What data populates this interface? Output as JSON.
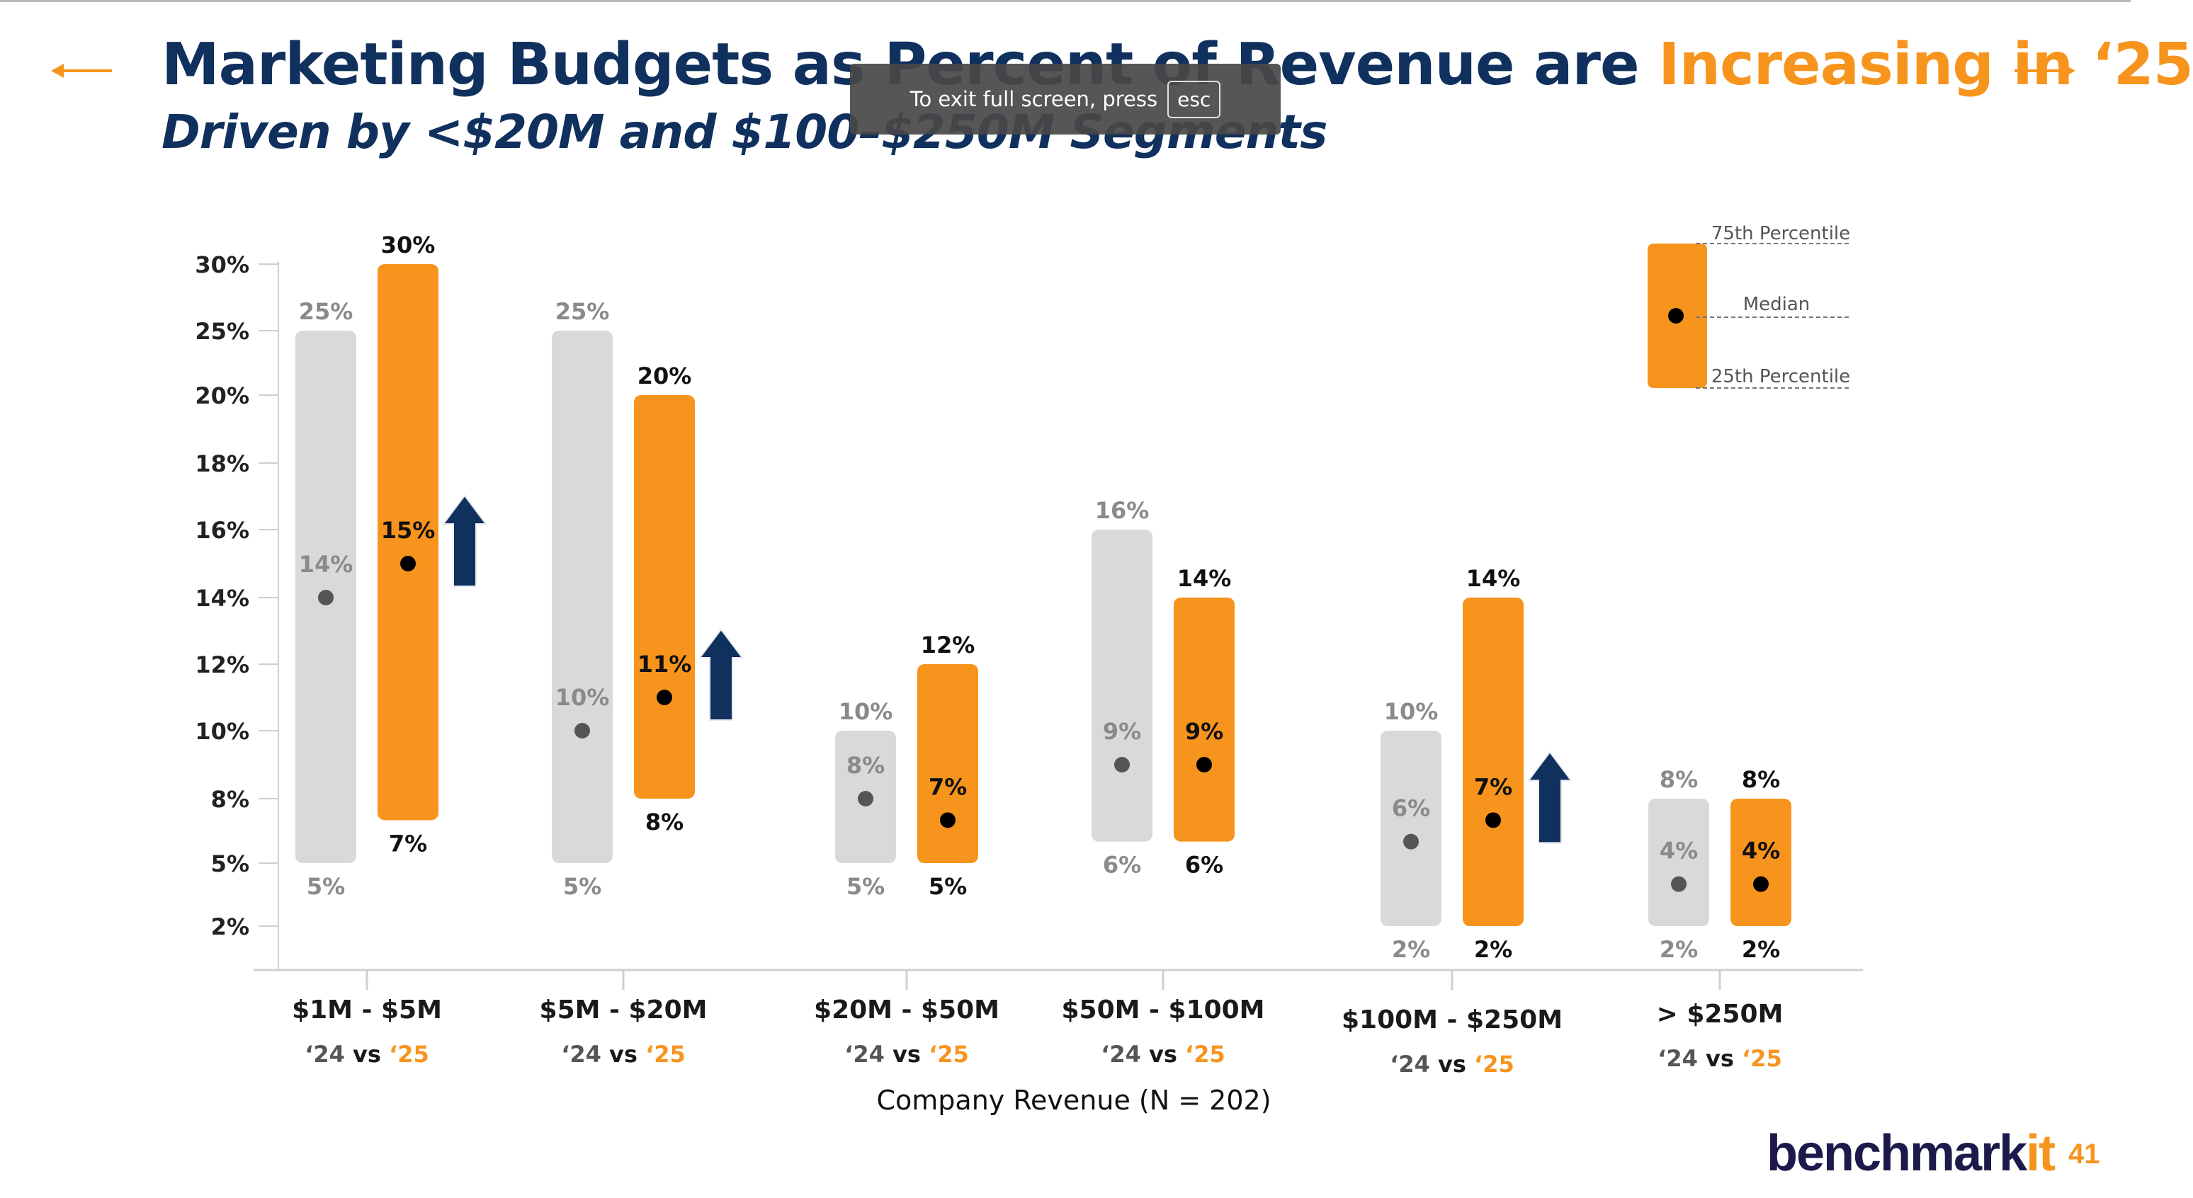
{
  "slide": {
    "title_main": "Marketing Budgets as Percent of Revenue are ",
    "title_highlight": "Increasing in ‘25",
    "subtitle": "Driven by <$20M and $100–$250M Segments",
    "page_number": "41",
    "brand_main": "benchmark",
    "brand_accent": "it",
    "nav_prev_icon": "arrow-left-icon",
    "nav_next_icon": "arrow-right-icon",
    "accent_color": "#f7941d",
    "navy_color": "#10305e"
  },
  "fullscreen_toast": {
    "text": "To exit full screen, press",
    "key": "esc"
  },
  "chart_data": {
    "type": "range-bar",
    "xlabel": "Company Revenue (N = 202)",
    "y_ticks": [
      "30%",
      "25%",
      "20%",
      "18%",
      "16%",
      "14%",
      "12%",
      "10%",
      "8%",
      "5%",
      "2%"
    ],
    "comparison_label": {
      "prefix": "‘24",
      "vs": "vs",
      "suffix": "‘25"
    },
    "legend": {
      "p75": "75th Percentile",
      "median": "Median",
      "p25": "25th Percentile"
    },
    "colors": {
      "y2024": "#d9d9d9",
      "y2025": "#f7941d",
      "arrow": "#10305e",
      "median2024": "#555555",
      "median2025": "#000000"
    },
    "categories": [
      {
        "label": "$1M - $5M",
        "y2024": {
          "p25": 5,
          "median": 14,
          "p75": 25,
          "p25_label": "5%",
          "median_label": "14%",
          "p75_label": "25%"
        },
        "y2025": {
          "p25": 7,
          "median": 15,
          "p75": 30,
          "p25_label": "7%",
          "median_label": "15%",
          "p75_label": "30%"
        },
        "increase_arrow": true
      },
      {
        "label": "$5M - $20M",
        "y2024": {
          "p25": 5,
          "median": 10,
          "p75": 25,
          "p25_label": "5%",
          "median_label": "10%",
          "p75_label": "25%"
        },
        "y2025": {
          "p25": 8,
          "median": 11,
          "p75": 20,
          "p25_label": "8%",
          "median_label": "11%",
          "p75_label": "20%"
        },
        "increase_arrow": true
      },
      {
        "label": "$20M - $50M",
        "y2024": {
          "p25": 5,
          "median": 8,
          "p75": 10,
          "p25_label": "5%",
          "median_label": "8%",
          "p75_label": "10%"
        },
        "y2025": {
          "p25": 5,
          "median": 7,
          "p75": 12,
          "p25_label": "5%",
          "median_label": "7%",
          "p75_label": "12%"
        },
        "increase_arrow": false
      },
      {
        "label": "$50M - $100M",
        "y2024": {
          "p25": 6,
          "median": 9,
          "p75": 16,
          "p25_label": "6%",
          "median_label": "9%",
          "p75_label": "16%"
        },
        "y2025": {
          "p25": 6,
          "median": 9,
          "p75": 14,
          "p25_label": "6%",
          "median_label": "9%",
          "p75_label": "14%"
        },
        "increase_arrow": false
      },
      {
        "label": "$100M - $250M",
        "y2024": {
          "p25": 2,
          "median": 6,
          "p75": 10,
          "p25_label": "2%",
          "median_label": "6%",
          "p75_label": "10%"
        },
        "y2025": {
          "p25": 2,
          "median": 7,
          "p75": 14,
          "p25_label": "2%",
          "median_label": "7%",
          "p75_label": "14%"
        },
        "increase_arrow": true
      },
      {
        "label": "> $250M",
        "y2024": {
          "p25": 2,
          "median": 4,
          "p75": 8,
          "p25_label": "2%",
          "median_label": "4%",
          "p75_label": "8%"
        },
        "y2025": {
          "p25": 2,
          "median": 4,
          "p75": 8,
          "p25_label": "2%",
          "median_label": "4%",
          "p75_label": "8%"
        },
        "increase_arrow": false
      }
    ]
  }
}
